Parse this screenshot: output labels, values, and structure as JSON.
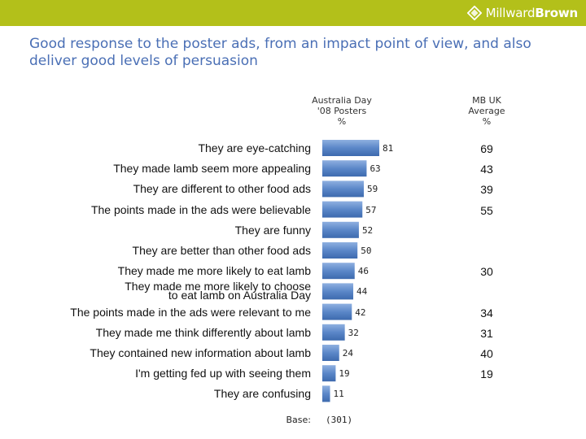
{
  "header": {
    "brand_light": "Millward",
    "brand_bold": "Brown",
    "accent_color": "#b3c01a"
  },
  "title": "Good response to the poster ads, from an impact point of view, and also deliver good levels of persuasion",
  "columns": {
    "posters": [
      "Australia Day",
      "'08 Posters",
      "%"
    ],
    "mb": [
      "MB UK",
      "Average",
      "%"
    ]
  },
  "base": {
    "label": "Base:",
    "value": "(301)"
  },
  "chart_data": {
    "type": "bar",
    "orientation": "horizontal",
    "title": "Good response to the poster ads, from an impact point of view, and also deliver good levels of persuasion",
    "xlim": [
      0,
      100
    ],
    "bar_color": "#5b87c8",
    "categories": [
      "They are eye-catching",
      "They made lamb seem more appealing",
      "They are different to other food ads",
      "The points made in the ads were believable",
      "They are funny",
      "They are better than other food ads",
      "They made me more likely to eat lamb",
      "They made me more likely to choose to eat lamb on Australia Day",
      "The points made in the ads were relevant to me",
      "They made me think differently about lamb",
      "They contained new information about lamb",
      "I'm getting fed up with seeing them",
      "They are confusing"
    ],
    "label_lines": [
      [
        "They are eye-catching"
      ],
      [
        "They made lamb seem more appealing"
      ],
      [
        "They are different to other food ads"
      ],
      [
        "The points made in the ads were believable"
      ],
      [
        "They are funny"
      ],
      [
        "They are better than other food ads"
      ],
      [
        "They made me more likely to eat lamb"
      ],
      [
        "They made me more likely to choose",
        "to eat lamb on Australia Day"
      ],
      [
        "The points made in the ads were relevant to me"
      ],
      [
        "They made me think differently about lamb"
      ],
      [
        "They contained new information about lamb"
      ],
      [
        "I'm getting fed up with seeing them"
      ],
      [
        "They are confusing"
      ]
    ],
    "series": [
      {
        "name": "Australia Day '08 Posters %",
        "values": [
          81,
          63,
          59,
          57,
          52,
          50,
          46,
          44,
          42,
          32,
          24,
          19,
          11
        ]
      },
      {
        "name": "MB UK Average %",
        "values": [
          "69",
          "43",
          "39",
          "55",
          "",
          "",
          "30",
          "",
          "34",
          "31",
          "40",
          "19",
          ""
        ]
      }
    ]
  }
}
